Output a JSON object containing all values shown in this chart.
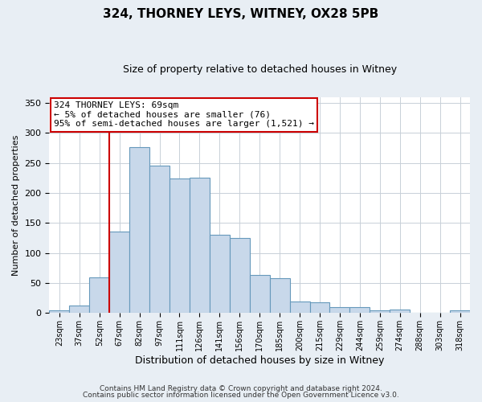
{
  "title": "324, THORNEY LEYS, WITNEY, OX28 5PB",
  "subtitle": "Size of property relative to detached houses in Witney",
  "xlabel": "Distribution of detached houses by size in Witney",
  "ylabel": "Number of detached properties",
  "bar_labels": [
    "23sqm",
    "37sqm",
    "52sqm",
    "67sqm",
    "82sqm",
    "97sqm",
    "111sqm",
    "126sqm",
    "141sqm",
    "156sqm",
    "170sqm",
    "185sqm",
    "200sqm",
    "215sqm",
    "229sqm",
    "244sqm",
    "259sqm",
    "274sqm",
    "288sqm",
    "303sqm",
    "318sqm"
  ],
  "bar_values": [
    5,
    12,
    60,
    136,
    277,
    245,
    224,
    225,
    131,
    125,
    63,
    58,
    19,
    18,
    10,
    10,
    4,
    6,
    0,
    0,
    5
  ],
  "bar_color": "#c8d8ea",
  "bar_edgecolor": "#6699bb",
  "vline_x": 3,
  "vline_color": "#cc0000",
  "annotation_text": "324 THORNEY LEYS: 69sqm\n← 5% of detached houses are smaller (76)\n95% of semi-detached houses are larger (1,521) →",
  "annotation_box_edgecolor": "#cc0000",
  "ylim": [
    0,
    360
  ],
  "yticks": [
    0,
    50,
    100,
    150,
    200,
    250,
    300,
    350
  ],
  "footer1": "Contains HM Land Registry data © Crown copyright and database right 2024.",
  "footer2": "Contains public sector information licensed under the Open Government Licence v3.0.",
  "background_color": "#e8eef4",
  "plot_background": "#ffffff",
  "grid_color": "#c8d0d8",
  "title_fontsize": 11,
  "subtitle_fontsize": 9,
  "ylabel_fontsize": 8,
  "xlabel_fontsize": 9,
  "ytick_fontsize": 8,
  "xtick_fontsize": 7,
  "annotation_fontsize": 8,
  "footer_fontsize": 6.5
}
